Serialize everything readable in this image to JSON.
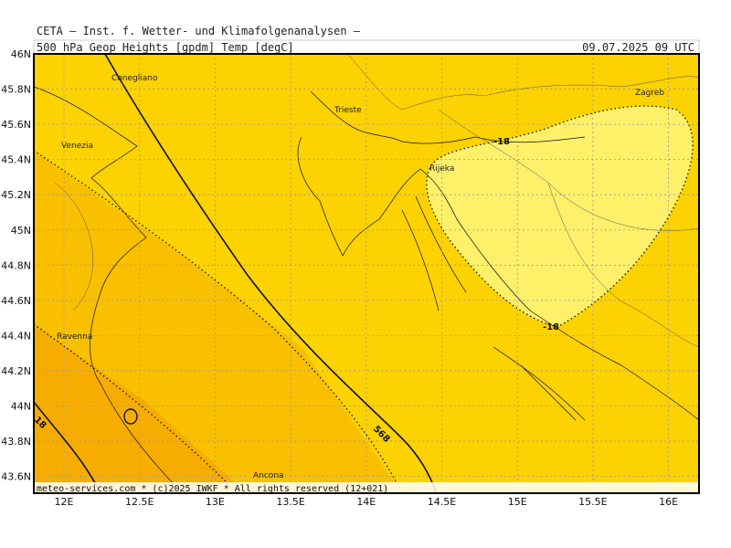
{
  "header": {
    "source": "CETA — Inst. f. Wetter- und Klimafolgenanalysen —",
    "field": "500_hPa_Geop_Heights_[gpdm]_Temp_[degC]",
    "valid": "09.07.2025 09 UTC"
  },
  "axes": {
    "lat": [
      "46N",
      "45.8N",
      "45.6N",
      "45.4N",
      "45.2N",
      "45N",
      "44.8N",
      "44.6N",
      "44.4N",
      "44.2N",
      "44N",
      "43.8N",
      "43.6N"
    ],
    "lon": [
      "12E",
      "12.5E",
      "13E",
      "13.5E",
      "14E",
      "14.5E",
      "15E",
      "15.5E",
      "16E"
    ]
  },
  "places": [
    "Conegliano",
    "Trieste",
    "Zagreb",
    "Venezia",
    "Rijeka",
    "Ravenna",
    "Ancona"
  ],
  "contours": [
    "-18",
    "-18",
    "568",
    "18"
  ],
  "footer": "meteo-services.com * (c)2025 IWKF * All rights reserved (12+021)"
}
